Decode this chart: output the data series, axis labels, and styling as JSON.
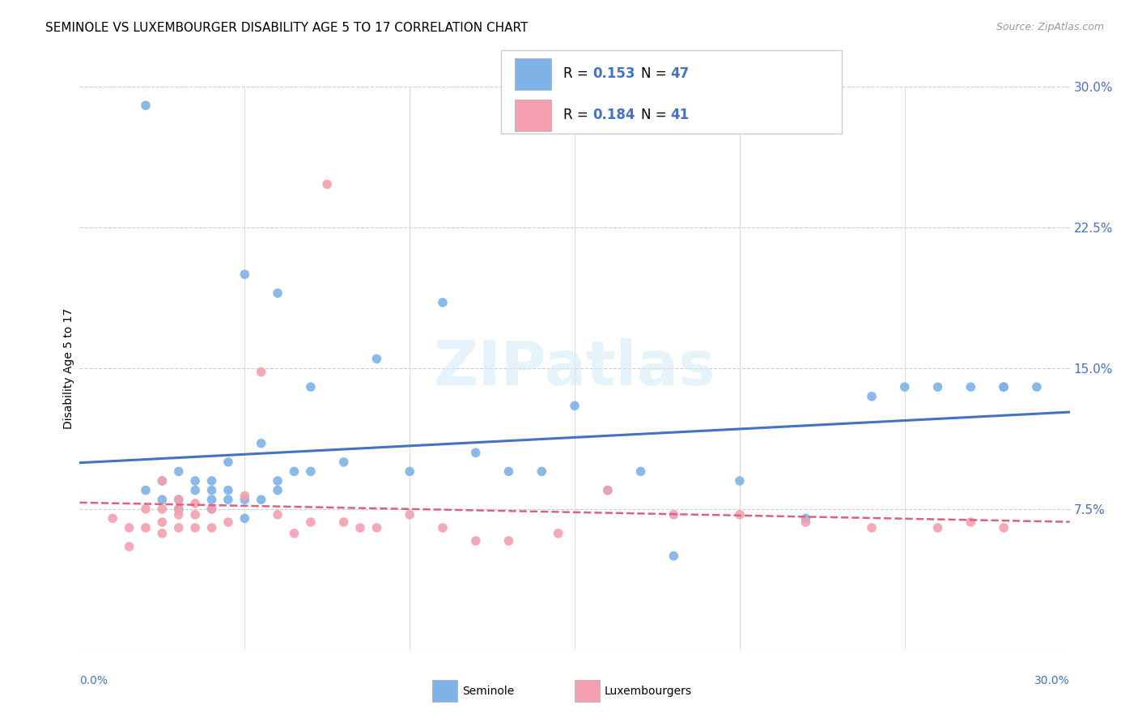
{
  "title": "SEMINOLE VS LUXEMBOURGER DISABILITY AGE 5 TO 17 CORRELATION CHART",
  "source": "Source: ZipAtlas.com",
  "ylabel": "Disability Age 5 to 17",
  "ytick_labels": [
    "7.5%",
    "15.0%",
    "22.5%",
    "30.0%"
  ],
  "ytick_values": [
    0.075,
    0.15,
    0.225,
    0.3
  ],
  "xlim": [
    0.0,
    0.3
  ],
  "ylim": [
    0.0,
    0.3
  ],
  "watermark": "ZIPatlas",
  "seminole_color": "#7fb3e8",
  "luxembourger_color": "#f4a0b0",
  "line_seminole_color": "#4472c4",
  "line_luxembourger_color": "#e06080",
  "seminole_x": [
    0.02,
    0.02,
    0.025,
    0.025,
    0.03,
    0.03,
    0.03,
    0.035,
    0.035,
    0.04,
    0.04,
    0.04,
    0.04,
    0.045,
    0.045,
    0.045,
    0.05,
    0.05,
    0.05,
    0.055,
    0.055,
    0.06,
    0.06,
    0.06,
    0.065,
    0.07,
    0.07,
    0.08,
    0.09,
    0.1,
    0.11,
    0.12,
    0.13,
    0.14,
    0.15,
    0.16,
    0.17,
    0.18,
    0.2,
    0.22,
    0.24,
    0.25,
    0.26,
    0.27,
    0.28,
    0.28,
    0.29
  ],
  "seminole_y": [
    0.29,
    0.085,
    0.09,
    0.08,
    0.075,
    0.08,
    0.095,
    0.085,
    0.09,
    0.085,
    0.09,
    0.08,
    0.075,
    0.08,
    0.085,
    0.1,
    0.07,
    0.08,
    0.2,
    0.08,
    0.11,
    0.085,
    0.09,
    0.19,
    0.095,
    0.095,
    0.14,
    0.1,
    0.155,
    0.095,
    0.185,
    0.105,
    0.095,
    0.095,
    0.13,
    0.085,
    0.095,
    0.05,
    0.09,
    0.07,
    0.135,
    0.14,
    0.14,
    0.14,
    0.14,
    0.14,
    0.14
  ],
  "luxembourger_x": [
    0.01,
    0.015,
    0.015,
    0.02,
    0.02,
    0.025,
    0.025,
    0.025,
    0.025,
    0.03,
    0.03,
    0.03,
    0.03,
    0.035,
    0.035,
    0.035,
    0.04,
    0.04,
    0.045,
    0.05,
    0.055,
    0.06,
    0.065,
    0.07,
    0.075,
    0.08,
    0.085,
    0.09,
    0.1,
    0.11,
    0.12,
    0.13,
    0.145,
    0.16,
    0.18,
    0.2,
    0.22,
    0.24,
    0.26,
    0.27,
    0.28
  ],
  "luxembourger_y": [
    0.07,
    0.065,
    0.055,
    0.075,
    0.065,
    0.075,
    0.068,
    0.062,
    0.09,
    0.08,
    0.075,
    0.072,
    0.065,
    0.078,
    0.072,
    0.065,
    0.075,
    0.065,
    0.068,
    0.082,
    0.148,
    0.072,
    0.062,
    0.068,
    0.248,
    0.068,
    0.065,
    0.065,
    0.072,
    0.065,
    0.058,
    0.058,
    0.062,
    0.085,
    0.072,
    0.072,
    0.068,
    0.065,
    0.065,
    0.068,
    0.065
  ]
}
